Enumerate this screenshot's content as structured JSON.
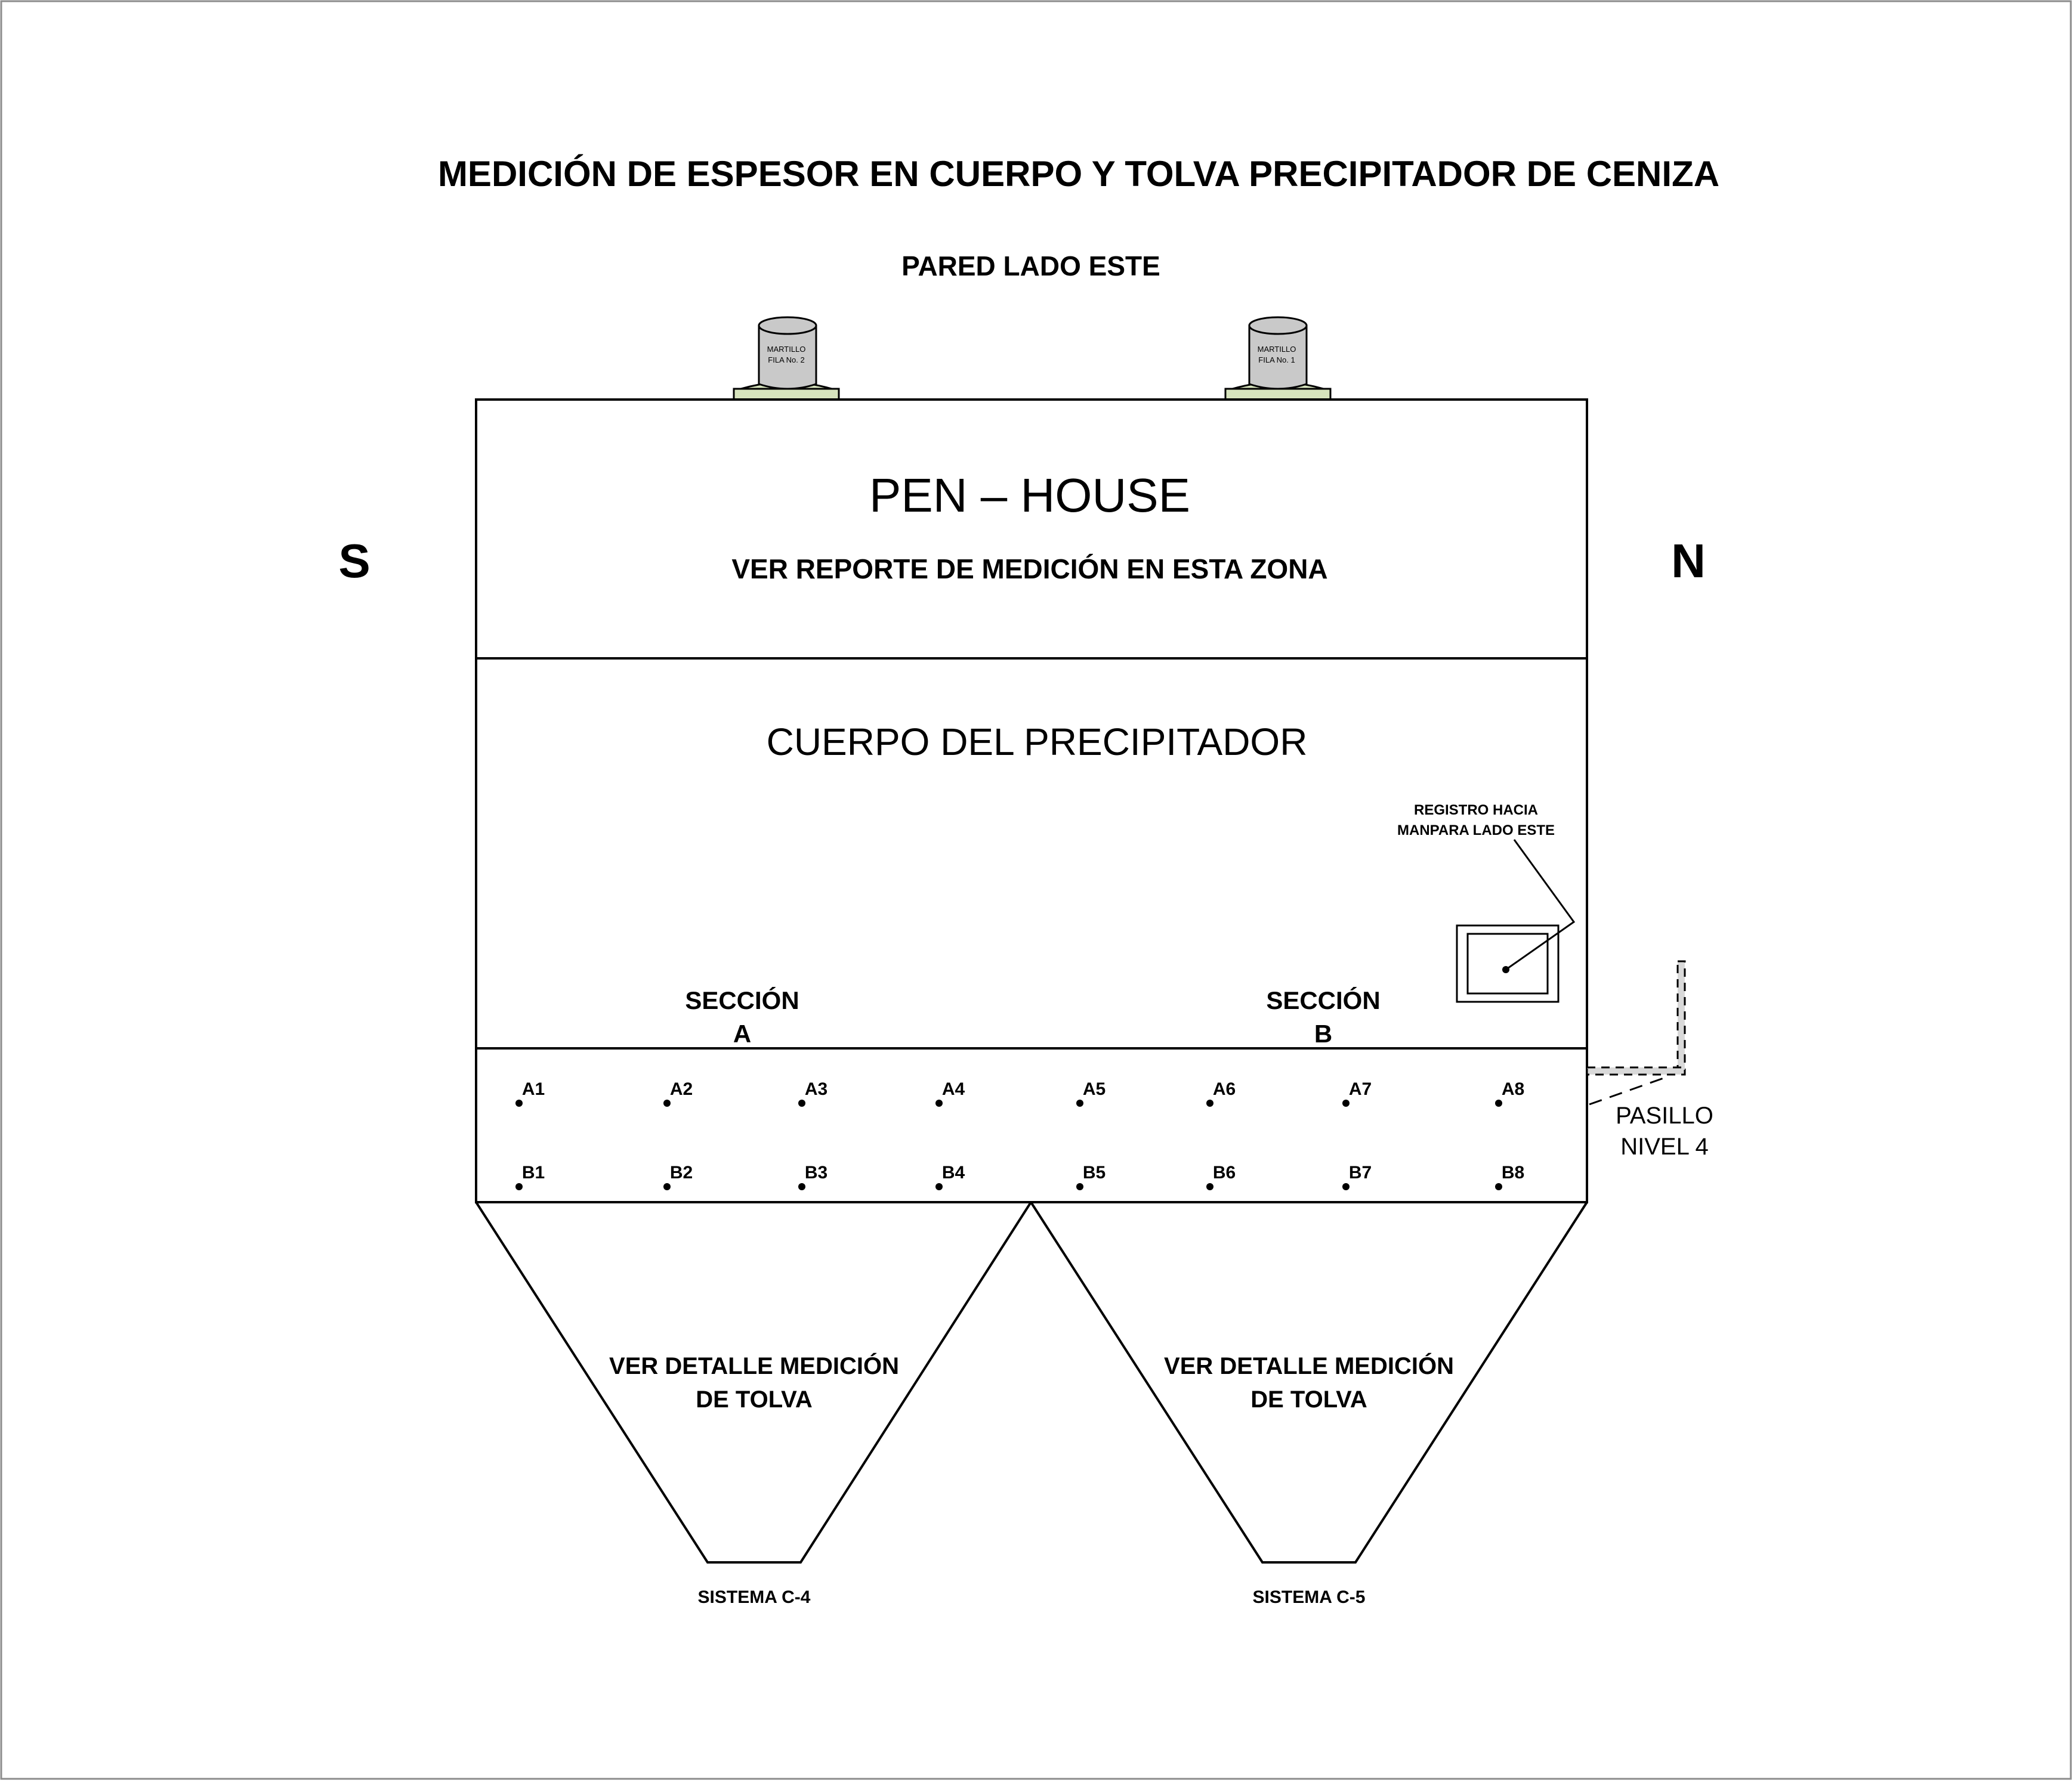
{
  "title": "MEDICIÓN DE ESPESOR EN CUERPO Y TOLVA PRECIPITADOR DE CENIZA",
  "wall_label": "PARED LADO ESTE",
  "south": "S",
  "north": "N",
  "hammers": [
    {
      "line1": "MARTILLO",
      "line2": "FILA No. 2"
    },
    {
      "line1": "MARTILLO",
      "line2": "FILA No. 1"
    }
  ],
  "pen_house": {
    "title": "PEN – HOUSE",
    "note": "VER REPORTE DE MEDICIÓN EN ESTA ZONA"
  },
  "body": {
    "title": "CUERPO DEL PRECIPITADOR",
    "registro_line1": "REGISTRO HACIA",
    "registro_line2": "MANPARA LADO ESTE",
    "section_a_line1": "SECCIÓN",
    "section_a_line2": "A",
    "section_b_line1": "SECCIÓN",
    "section_b_line2": "B"
  },
  "points_row_a": [
    "A1",
    "A2",
    "A3",
    "A4",
    "A5",
    "A6",
    "A7",
    "A8"
  ],
  "points_row_b": [
    "B1",
    "B2",
    "B3",
    "B4",
    "B5",
    "B6",
    "B7",
    "B8"
  ],
  "pasillo": {
    "line1": "PASILLO",
    "line2": "NIVEL 4"
  },
  "hoppers": [
    {
      "line1": "VER DETALLE MEDICIÓN",
      "line2": "DE TOLVA",
      "system": "SISTEMA C-4"
    },
    {
      "line1": "VER DETALLE MEDICIÓN",
      "line2": "DE TOLVA",
      "system": "SISTEMA C-5"
    }
  ],
  "colors": {
    "line": "#000000",
    "hammer_body": "#c9c9c9",
    "hammer_base": "#d7e4bd",
    "walkway": "#d9d9d9"
  }
}
